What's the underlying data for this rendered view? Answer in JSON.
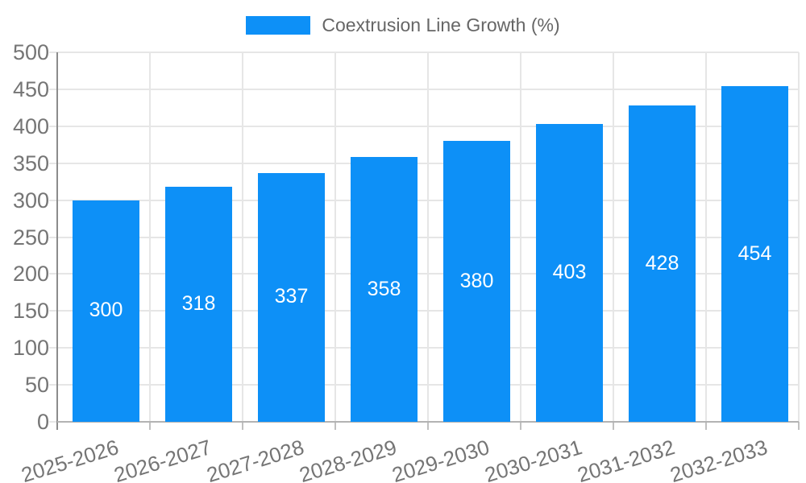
{
  "legend": {
    "label": "Coextrusion Line Growth (%)"
  },
  "chart_data": {
    "type": "bar",
    "title": "Coextrusion Line Growth (%)",
    "series_name": "Coextrusion Line Growth (%)",
    "categories": [
      "2025-2026",
      "2026-2027",
      "2027-2028",
      "2028-2029",
      "2029-2030",
      "2030-2031",
      "2031-2032",
      "2032-2033"
    ],
    "values": [
      300,
      318,
      337,
      358,
      380,
      403,
      428,
      454
    ],
    "xlabel": "",
    "ylabel": "",
    "ylim": [
      0,
      500
    ],
    "y_ticks": [
      0,
      50,
      100,
      150,
      200,
      250,
      300,
      350,
      400,
      450,
      500
    ],
    "grid": true,
    "legend_position": "top",
    "value_labels": "inside-center",
    "colors": {
      "bar": "#0d90f7",
      "value_label": "#ffffff",
      "axis_text": "#757575",
      "legend_text": "#666666",
      "grid": "#e6e6e6",
      "axis_line_y": "#8c8c8c",
      "axis_line_x": "#b3b3b3",
      "tick": "#c0c0c0"
    }
  }
}
